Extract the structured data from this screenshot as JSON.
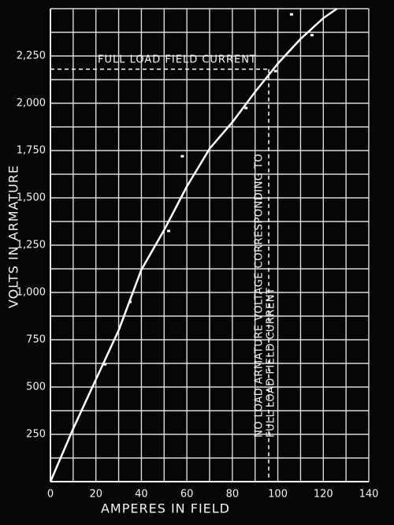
{
  "chart_data": {
    "type": "line",
    "xlabel": "AMPERES IN FIELD",
    "ylabel": "VOLTS IN ARMATURE",
    "xlim": [
      0,
      140
    ],
    "xticks": [
      0,
      20,
      40,
      60,
      80,
      100,
      120,
      140
    ],
    "ylim": [
      0,
      2500
    ],
    "yticks": [
      {
        "value": 250,
        "label": "250"
      },
      {
        "value": 500,
        "label": "500"
      },
      {
        "value": 750,
        "label": "750"
      },
      {
        "value": 1000,
        "label": "1,000"
      },
      {
        "value": 1250,
        "label": "1,250"
      },
      {
        "value": 1500,
        "label": "1,500"
      },
      {
        "value": 1750,
        "label": "1,750"
      },
      {
        "value": 2000,
        "label": "2,000"
      },
      {
        "value": 2250,
        "label": "2,250"
      }
    ],
    "grid": true,
    "series": [
      {
        "color": "#ffffff",
        "marker": false,
        "x": [
          0,
          10,
          20,
          30,
          40,
          50,
          60,
          70,
          80,
          90,
          100,
          110,
          120,
          126
        ],
        "values": [
          0,
          280,
          540,
          800,
          1120,
          1330,
          1560,
          1760,
          1900,
          2060,
          2210,
          2340,
          2450,
          2500
        ]
      },
      {
        "color": "#ffffff",
        "marker": true,
        "x": [
          24,
          35,
          52,
          58,
          86,
          99,
          115,
          106
        ],
        "values": [
          620,
          950,
          1325,
          1720,
          1975,
          2170,
          2360,
          2470
        ]
      }
    ],
    "annotations": [
      {
        "text": "FULL LOAD FIELD CURRENT",
        "x": 96,
        "y": 2180,
        "direction": "horizontal"
      },
      {
        "text": "NO LOAD ARMATURE VOLTAGE CORRESPONDING TO",
        "x": 96,
        "y": 2180,
        "direction": "vertical"
      },
      {
        "text": "FULL LOAD FIELD CURRENT",
        "x": 96,
        "y": 2180,
        "direction": "vertical"
      }
    ]
  }
}
